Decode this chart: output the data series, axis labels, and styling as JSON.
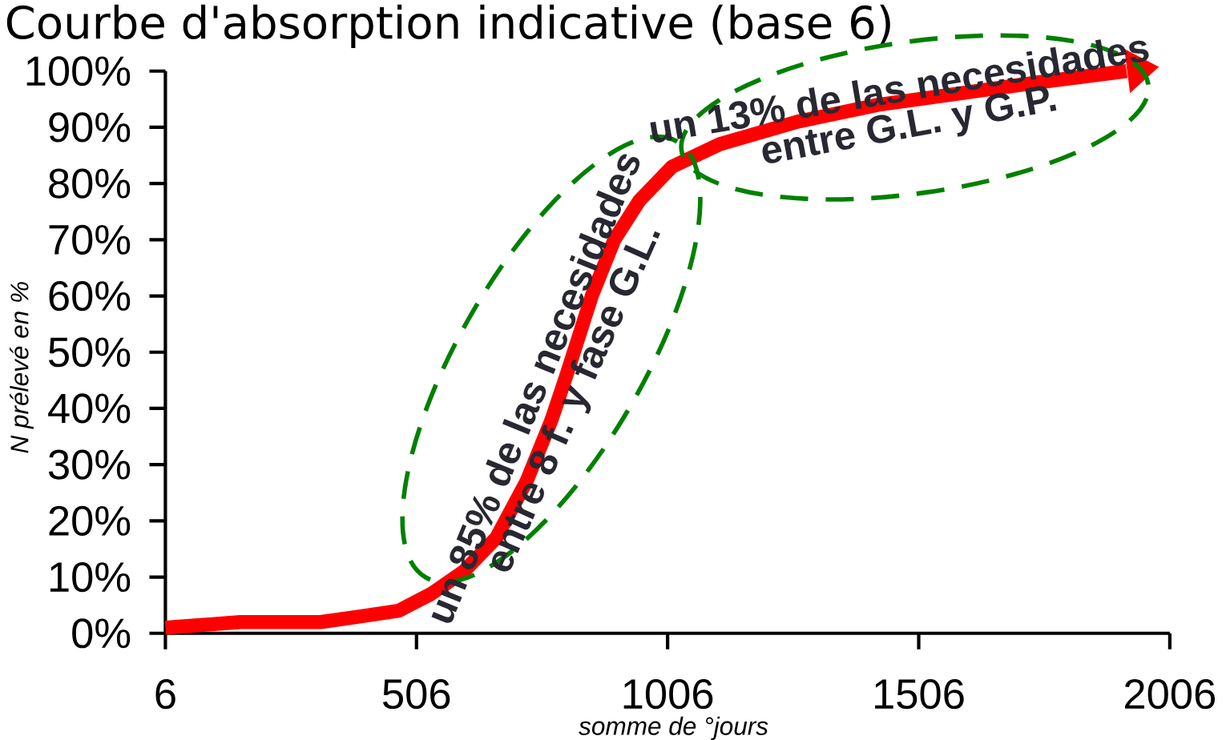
{
  "chart_data": {
    "type": "line",
    "title": "Courbe d'absorption indicative (base 6)",
    "xlabel": "somme de °jours",
    "ylabel": "N prélevé  en %",
    "annotations": [
      "un 85% de las necesidades",
      "entre 8 f.  y fase G.L.",
      "un 13% de las necesidades",
      "entre G.L. y G.P."
    ],
    "x": [
      6,
      155,
      315,
      395,
      470,
      535,
      600,
      665,
      725,
      775,
      805,
      855,
      900,
      950,
      1015,
      1110,
      1265,
      1425,
      1585,
      1745,
      1920
    ],
    "series": [
      {
        "color": "#ff0000",
        "values": [
          1,
          2,
          2,
          3,
          4,
          7,
          11,
          17,
          27,
          38,
          46,
          60,
          70,
          77,
          83,
          87,
          91,
          94,
          96,
          98,
          100
        ]
      }
    ],
    "xlim": [
      6,
      2006
    ],
    "ylim": [
      0,
      100
    ],
    "xticks": [
      6,
      506,
      1006,
      1506,
      2006
    ],
    "yticks": [
      {
        "value": 0,
        "label": "0%"
      },
      {
        "value": 10,
        "label": "10%"
      },
      {
        "value": 20,
        "label": "20%"
      },
      {
        "value": 30,
        "label": "30%"
      },
      {
        "value": 40,
        "label": "40%"
      },
      {
        "value": 50,
        "label": "50%"
      },
      {
        "value": 60,
        "label": "60%"
      },
      {
        "value": 70,
        "label": "70%"
      },
      {
        "value": 80,
        "label": "80%"
      },
      {
        "value": 90,
        "label": "90%"
      },
      {
        "value": 100,
        "label": "100%"
      }
    ],
    "marker": "none",
    "line_style": "solid"
  }
}
